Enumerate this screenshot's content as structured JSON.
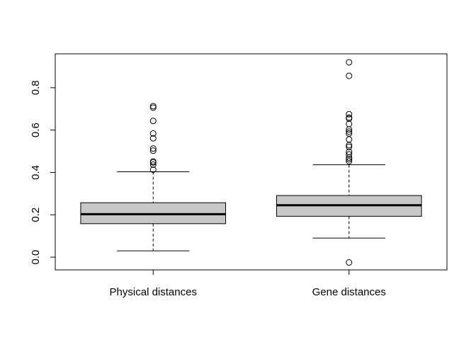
{
  "chart_data": {
    "type": "boxplot",
    "title": "",
    "xlabel": "",
    "ylabel": "",
    "ylim": [
      -0.06,
      0.96
    ],
    "y_ticks": [
      "0.0",
      "0.2",
      "0.4",
      "0.6",
      "0.8"
    ],
    "grid": false,
    "box_fill": "#c7c7c7",
    "categories": [
      "Physical distances",
      "Gene distances"
    ],
    "boxes": [
      {
        "whisker_low": 0.03,
        "q1": 0.158,
        "median": 0.203,
        "q3": 0.257,
        "whisker_high": 0.403,
        "outliers": [
          0.413,
          0.437,
          0.447,
          0.452,
          0.503,
          0.513,
          0.561,
          0.584,
          0.643,
          0.706,
          0.713
        ]
      },
      {
        "whisker_low": 0.09,
        "q1": 0.193,
        "median": 0.245,
        "q3": 0.291,
        "whisker_high": 0.436,
        "outliers": [
          -0.025,
          0.453,
          0.462,
          0.47,
          0.485,
          0.497,
          0.521,
          0.529,
          0.556,
          0.584,
          0.593,
          0.603,
          0.629,
          0.654,
          0.659,
          0.675,
          0.856,
          0.92
        ]
      }
    ]
  }
}
